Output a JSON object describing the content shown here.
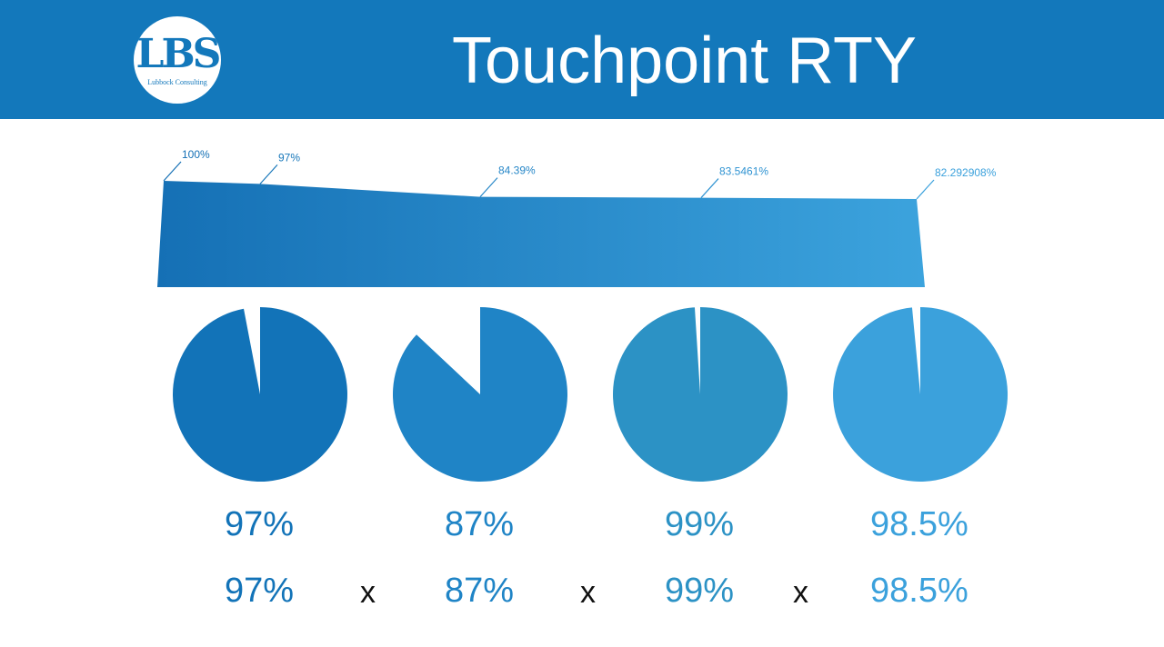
{
  "header": {
    "title": "Touchpoint RTY",
    "logo_text": "LBS",
    "logo_subtext": "Lubbock Consulting"
  },
  "colors": {
    "header_bg": "#1378bb",
    "series": [
      "#1273b8",
      "#1f84c6",
      "#2c92c5",
      "#3ba1dc"
    ],
    "area_start": "#1570b5",
    "area_end": "#3ca3dd"
  },
  "chart_data": [
    {
      "type": "area",
      "title": "",
      "x": [
        0,
        1,
        2,
        3,
        4
      ],
      "values": [
        100,
        97,
        84.39,
        83.5461,
        82.292908
      ],
      "data_labels": [
        "100%",
        "97%",
        "84.39%",
        "83.5461%",
        "82.292908%"
      ],
      "unit": "%"
    },
    {
      "type": "pie",
      "slices": [
        {
          "label": "97%",
          "value": 97
        },
        {
          "label": "87%",
          "value": 87
        },
        {
          "label": "99%",
          "value": 99
        },
        {
          "label": "98.5%",
          "value": 98.5
        }
      ]
    }
  ],
  "labels": {
    "row1": [
      "97%",
      "87%",
      "99%",
      "98.5%"
    ],
    "row2": [
      "97%",
      "87%",
      "99%",
      "98.5%"
    ],
    "operator": "x"
  }
}
